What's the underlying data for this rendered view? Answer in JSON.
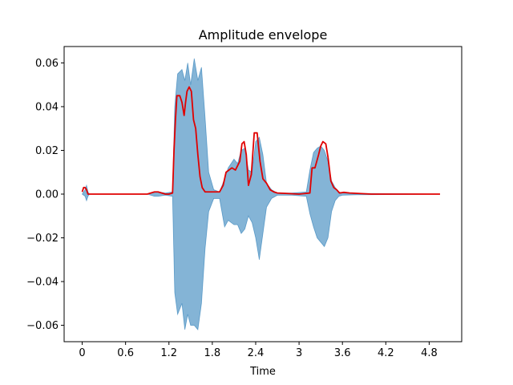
{
  "chart_data": {
    "type": "line",
    "title": "Amplitude envelope",
    "xlabel": "Time",
    "ylabel": "",
    "xlim": [
      -0.25,
      5.25
    ],
    "ylim": [
      -0.0675,
      0.0675
    ],
    "x_ticks": [
      0,
      0.6,
      1.2,
      1.8,
      2.4,
      3.0,
      3.6,
      4.2,
      4.8
    ],
    "x_tick_labels": [
      "0",
      "0.6",
      "1.2",
      "1.8",
      "2.4",
      "3",
      "3.6",
      "4.2",
      "4.8"
    ],
    "y_ticks": [
      -0.06,
      -0.04,
      -0.02,
      0.0,
      0.02,
      0.04,
      0.06
    ],
    "y_tick_labels": [
      "−0.06",
      "−0.04",
      "−0.02",
      "0.00",
      "0.02",
      "0.04",
      "0.06"
    ],
    "grid": false,
    "legend": "none",
    "series": [
      {
        "kind": "waveform-band",
        "color": "#1f77b4",
        "opacity": 0.55,
        "x": [
          0.0,
          0.04,
          0.06,
          0.08,
          0.1,
          0.9,
          1.0,
          1.05,
          1.15,
          1.25,
          1.28,
          1.32,
          1.38,
          1.42,
          1.46,
          1.5,
          1.55,
          1.6,
          1.65,
          1.7,
          1.75,
          1.82,
          1.9,
          1.97,
          2.02,
          2.1,
          2.15,
          2.2,
          2.25,
          2.3,
          2.35,
          2.4,
          2.45,
          2.5,
          2.55,
          2.62,
          2.7,
          2.9,
          3.1,
          3.15,
          3.2,
          3.25,
          3.3,
          3.35,
          3.4,
          3.45,
          3.5,
          3.55,
          3.6,
          3.8,
          4.2,
          4.9
        ],
        "upper": [
          0.0,
          0.002,
          0.004,
          0.001,
          0.0,
          0.0,
          0.001,
          0.001,
          0.0005,
          0.001,
          0.04,
          0.055,
          0.057,
          0.052,
          0.06,
          0.05,
          0.062,
          0.052,
          0.058,
          0.035,
          0.01,
          0.002,
          0.001,
          0.007,
          0.012,
          0.016,
          0.014,
          0.02,
          0.021,
          0.011,
          0.01,
          0.024,
          0.026,
          0.018,
          0.005,
          0.002,
          0.0005,
          0.0005,
          0.001,
          0.011,
          0.019,
          0.021,
          0.022,
          0.02,
          0.015,
          0.006,
          0.003,
          0.001,
          0.0005,
          0.0003,
          0.0002,
          0.0
        ],
        "lower": [
          0.0,
          -0.001,
          -0.003,
          -0.001,
          0.0,
          0.0,
          -0.001,
          -0.001,
          -0.0005,
          -0.001,
          -0.045,
          -0.055,
          -0.05,
          -0.062,
          -0.055,
          -0.06,
          -0.06,
          -0.062,
          -0.05,
          -0.025,
          -0.008,
          -0.002,
          -0.002,
          -0.015,
          -0.012,
          -0.014,
          -0.014,
          -0.018,
          -0.016,
          -0.01,
          -0.013,
          -0.02,
          -0.03,
          -0.018,
          -0.006,
          -0.002,
          -0.0005,
          -0.0005,
          -0.001,
          -0.009,
          -0.015,
          -0.02,
          -0.022,
          -0.024,
          -0.02,
          -0.008,
          -0.003,
          -0.001,
          -0.0005,
          -0.0003,
          -0.0002,
          0.0
        ]
      },
      {
        "kind": "envelope",
        "color": "#e00000",
        "x": [
          0.0,
          0.02,
          0.04,
          0.06,
          0.08,
          0.1,
          0.2,
          0.9,
          1.0,
          1.05,
          1.1,
          1.15,
          1.2,
          1.25,
          1.27,
          1.29,
          1.31,
          1.35,
          1.38,
          1.41,
          1.43,
          1.45,
          1.48,
          1.51,
          1.54,
          1.57,
          1.6,
          1.63,
          1.66,
          1.7,
          1.75,
          1.8,
          1.9,
          1.95,
          1.99,
          2.03,
          2.07,
          2.12,
          2.15,
          2.18,
          2.21,
          2.24,
          2.27,
          2.3,
          2.34,
          2.38,
          2.42,
          2.46,
          2.5,
          2.55,
          2.6,
          2.65,
          2.7,
          3.0,
          3.15,
          3.18,
          3.22,
          3.27,
          3.3,
          3.33,
          3.37,
          3.4,
          3.44,
          3.48,
          3.52,
          3.56,
          3.62,
          3.7,
          4.0,
          4.5,
          4.95
        ],
        "y": [
          0.001,
          0.003,
          0.003,
          0.002,
          0.0,
          0.0,
          0.0,
          0.0,
          0.001,
          0.001,
          0.0005,
          0.0,
          0.0,
          0.0005,
          0.02,
          0.034,
          0.045,
          0.045,
          0.042,
          0.036,
          0.042,
          0.047,
          0.049,
          0.047,
          0.034,
          0.03,
          0.018,
          0.008,
          0.003,
          0.001,
          0.001,
          0.001,
          0.001,
          0.004,
          0.01,
          0.011,
          0.012,
          0.011,
          0.013,
          0.015,
          0.023,
          0.024,
          0.018,
          0.004,
          0.009,
          0.028,
          0.028,
          0.015,
          0.007,
          0.005,
          0.002,
          0.001,
          0.0005,
          0.0,
          0.0005,
          0.012,
          0.012,
          0.018,
          0.022,
          0.024,
          0.023,
          0.017,
          0.006,
          0.003,
          0.002,
          0.0005,
          0.0008,
          0.0005,
          0.0,
          0.0,
          0.0
        ]
      }
    ]
  }
}
